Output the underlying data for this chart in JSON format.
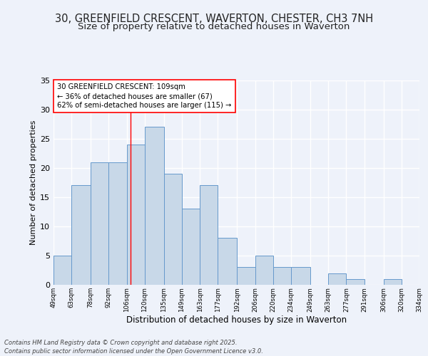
{
  "title_line1": "30, GREENFIELD CRESCENT, WAVERTON, CHESTER, CH3 7NH",
  "title_line2": "Size of property relative to detached houses in Waverton",
  "xlabel": "Distribution of detached houses by size in Waverton",
  "ylabel": "Number of detached properties",
  "bar_values": [
    5,
    17,
    21,
    21,
    24,
    27,
    19,
    13,
    17,
    8,
    3,
    5,
    3,
    3,
    0,
    2,
    1,
    0,
    1,
    0
  ],
  "bin_edges": [
    49,
    63,
    78,
    92,
    106,
    120,
    135,
    149,
    163,
    177,
    192,
    206,
    220,
    234,
    249,
    263,
    277,
    291,
    306,
    320,
    334
  ],
  "tick_labels": [
    "49sqm",
    "63sqm",
    "78sqm",
    "92sqm",
    "106sqm",
    "120sqm",
    "135sqm",
    "149sqm",
    "163sqm",
    "177sqm",
    "192sqm",
    "206sqm",
    "220sqm",
    "234sqm",
    "249sqm",
    "263sqm",
    "277sqm",
    "291sqm",
    "306sqm",
    "320sqm",
    "334sqm"
  ],
  "bar_color": "#c8d8e8",
  "bar_edge_color": "#6699cc",
  "red_line_x": 109,
  "annotation_text": "30 GREENFIELD CRESCENT: 109sqm\n← 36% of detached houses are smaller (67)\n62% of semi-detached houses are larger (115) →",
  "footer_text": "Contains HM Land Registry data © Crown copyright and database right 2025.\nContains public sector information licensed under the Open Government Licence v3.0.",
  "ylim": [
    0,
    35
  ],
  "yticks": [
    0,
    5,
    10,
    15,
    20,
    25,
    30,
    35
  ],
  "background_color": "#eef2fa",
  "grid_color": "#ffffff",
  "title_fontsize": 10.5,
  "subtitle_fontsize": 9.5
}
